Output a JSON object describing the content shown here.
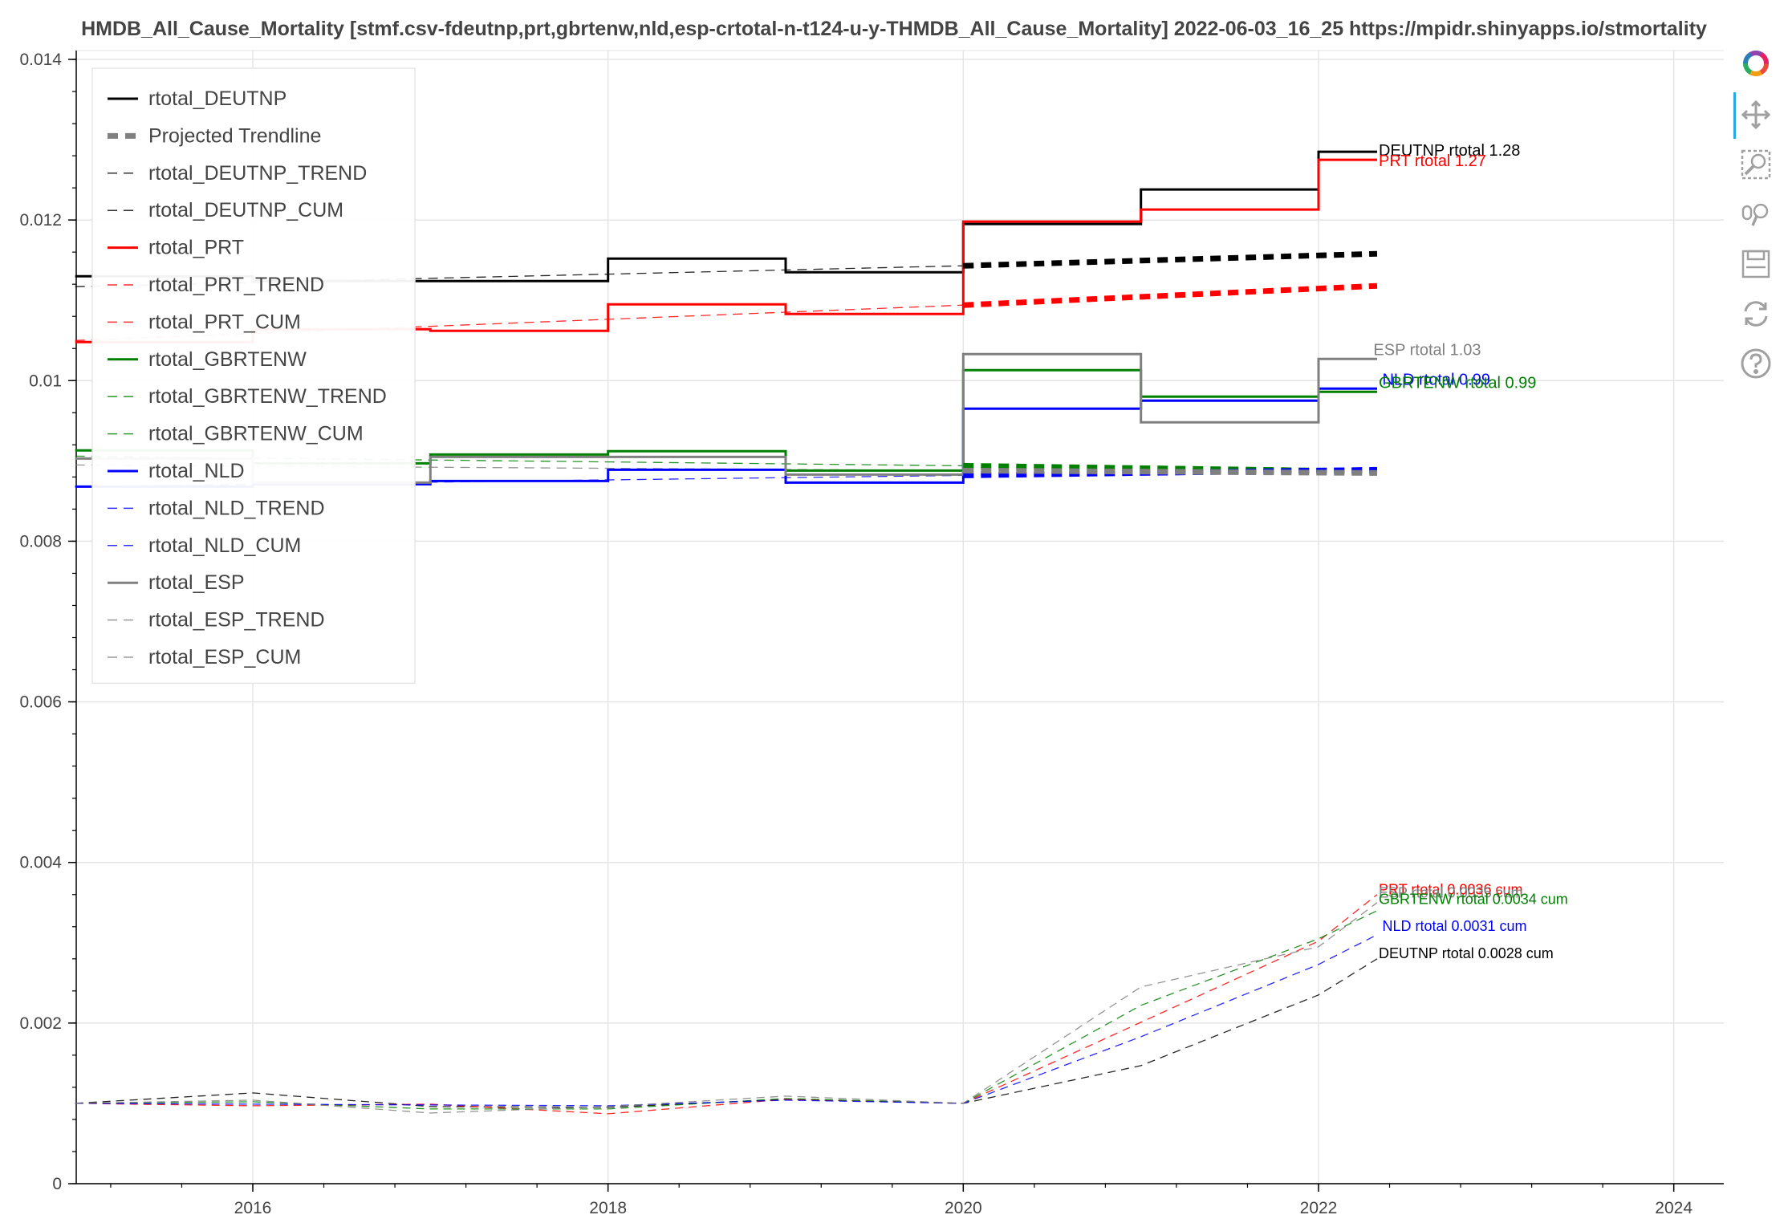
{
  "title": "HMDB_All_Cause_Mortality [stmf.csv-fdeutnp,prt,gbrtenw,nld,esp-crtotal-n-t124-u-y-THMDB_All_Cause_Mortality] 2022-06-03_16_25  https://mpidr.shinyapps.io/stmortality",
  "toolbar": {
    "tools": [
      "bokeh-logo-icon",
      "pan-icon",
      "box-zoom-icon",
      "wheel-zoom-icon",
      "save-icon",
      "reset-icon",
      "help-icon"
    ],
    "active": "pan-icon",
    "colors": {
      "logo": [
        "#e84c3d",
        "#f39c12",
        "#27ae60",
        "#2980b9",
        "#8e44ad",
        "#e91e63"
      ],
      "tool": "#a0a0a0",
      "active_bar": "#26aae1"
    }
  },
  "chart_data": {
    "type": "line",
    "title": "HMDB_All_Cause_Mortality [stmf.csv-fdeutnp,prt,gbrtenw,nld,esp-crtotal-n-t124-u-y-THMDB_All_Cause_Mortality] 2022-06-03_16_25  https://mpidr.shinyapps.io/stmortality",
    "xlim": [
      2015.0,
      2024.7
    ],
    "ylim": [
      0,
      0.0143
    ],
    "x_ticks": [
      2016,
      2018,
      2020,
      2022,
      2024
    ],
    "x_tick_labels": [
      "2016",
      "2018",
      "2020",
      "2022",
      "2024"
    ],
    "y_ticks": [
      0,
      0.002,
      0.004,
      0.006,
      0.008,
      0.01,
      0.012,
      0.014
    ],
    "y_tick_labels": [
      "0",
      "0.002",
      "0.004",
      "0.006",
      "0.008",
      "0.01",
      "0.012",
      "0.014"
    ],
    "grid": true,
    "legend_position": "top-left",
    "legend": [
      {
        "label": "rtotal_DEUTNP",
        "color": "#000000",
        "style": "solid"
      },
      {
        "label": "Projected Trendline",
        "color": "#808080",
        "style": "thick-dash"
      },
      {
        "label": "rtotal_DEUTNP_TREND",
        "color": "#000000",
        "style": "dashed"
      },
      {
        "label": "rtotal_DEUTNP_CUM",
        "color": "#000000",
        "style": "dashed"
      },
      {
        "label": "rtotal_PRT",
        "color": "#ff0000",
        "style": "solid"
      },
      {
        "label": "rtotal_PRT_TREND",
        "color": "#ff0000",
        "style": "dashed"
      },
      {
        "label": "rtotal_PRT_CUM",
        "color": "#ff0000",
        "style": "dashed"
      },
      {
        "label": "rtotal_GBRTENW",
        "color": "#008000",
        "style": "solid"
      },
      {
        "label": "rtotal_GBRTENW_TREND",
        "color": "#008000",
        "style": "dashed"
      },
      {
        "label": "rtotal_GBRTENW_CUM",
        "color": "#008000",
        "style": "dashed"
      },
      {
        "label": "rtotal_NLD",
        "color": "#0000ff",
        "style": "solid"
      },
      {
        "label": "rtotal_NLD_TREND",
        "color": "#0000ff",
        "style": "dashed"
      },
      {
        "label": "rtotal_NLD_CUM",
        "color": "#0000ff",
        "style": "dashed"
      },
      {
        "label": "rtotal_ESP",
        "color": "#808080",
        "style": "solid"
      },
      {
        "label": "rtotal_ESP_TREND",
        "color": "#808080",
        "style": "dashed"
      },
      {
        "label": "rtotal_ESP_CUM",
        "color": "#808080",
        "style": "dashed"
      }
    ],
    "series": [
      {
        "name": "rtotal_DEUTNP",
        "color": "#000000",
        "kind": "step",
        "x": [
          2015.0,
          2016.0,
          2017.0,
          2018.0,
          2019.0,
          2020.0,
          2021.0,
          2022.0,
          2022.33
        ],
        "y": [
          0.0113,
          0.01124,
          0.01124,
          0.01152,
          0.01135,
          0.01195,
          0.01238,
          0.01285,
          0.01285
        ]
      },
      {
        "name": "rtotal_DEUTNP_TREND",
        "color": "#000000",
        "kind": "trend",
        "x": [
          2015.0,
          2020.0
        ],
        "y": [
          0.01117,
          0.01143
        ]
      },
      {
        "name": "rtotal_DEUTNP_PROJ",
        "color": "#000000",
        "kind": "proj",
        "x": [
          2020.0,
          2022.33
        ],
        "y": [
          0.01143,
          0.01158
        ]
      },
      {
        "name": "rtotal_DEUTNP_CUM",
        "color": "#000000",
        "kind": "cum",
        "x": [
          2015.0,
          2016.0,
          2017.0,
          2018.0,
          2019.0,
          2020.0,
          2021.0,
          2022.0,
          2022.33
        ],
        "y": [
          0.001,
          0.00113,
          0.00096,
          0.00095,
          0.00105,
          0.001,
          0.00147,
          0.00235,
          0.0028
        ]
      },
      {
        "name": "rtotal_PRT",
        "color": "#ff0000",
        "kind": "step",
        "x": [
          2015.0,
          2016.0,
          2017.0,
          2018.0,
          2019.0,
          2020.0,
          2021.0,
          2022.0,
          2022.33
        ],
        "y": [
          0.01048,
          0.01064,
          0.01062,
          0.01095,
          0.01083,
          0.01198,
          0.01213,
          0.01275,
          0.01275
        ]
      },
      {
        "name": "rtotal_PRT_TREND",
        "color": "#ff0000",
        "kind": "trend",
        "x": [
          2015.0,
          2020.0
        ],
        "y": [
          0.0105,
          0.01094
        ]
      },
      {
        "name": "rtotal_PRT_PROJ",
        "color": "#ff0000",
        "kind": "proj",
        "x": [
          2020.0,
          2022.33
        ],
        "y": [
          0.01094,
          0.01118
        ]
      },
      {
        "name": "rtotal_PRT_CUM",
        "color": "#ff0000",
        "kind": "cum",
        "x": [
          2015.0,
          2016.0,
          2017.0,
          2018.0,
          2019.0,
          2020.0,
          2021.0,
          2022.0,
          2022.33
        ],
        "y": [
          0.001,
          0.00097,
          0.00099,
          0.00087,
          0.00105,
          0.001,
          0.00201,
          0.00302,
          0.0036
        ]
      },
      {
        "name": "rtotal_GBRTENW",
        "color": "#008000",
        "kind": "step",
        "x": [
          2015.0,
          2016.0,
          2017.0,
          2018.0,
          2019.0,
          2020.0,
          2021.0,
          2022.0,
          2022.33
        ],
        "y": [
          0.00913,
          0.00897,
          0.00908,
          0.00912,
          0.00888,
          0.01013,
          0.0098,
          0.00986,
          0.00986
        ]
      },
      {
        "name": "rtotal_GBRTENW_TREND",
        "color": "#008000",
        "kind": "trend",
        "x": [
          2015.0,
          2020.0
        ],
        "y": [
          0.00906,
          0.00894
        ]
      },
      {
        "name": "rtotal_GBRTENW_PROJ",
        "color": "#008000",
        "kind": "proj",
        "x": [
          2020.0,
          2022.33
        ],
        "y": [
          0.00894,
          0.00887
        ]
      },
      {
        "name": "rtotal_GBRTENW_CUM",
        "color": "#008000",
        "kind": "cum",
        "x": [
          2015.0,
          2016.0,
          2017.0,
          2018.0,
          2019.0,
          2020.0,
          2021.0,
          2022.0,
          2022.33
        ],
        "y": [
          0.001,
          0.00102,
          0.00093,
          0.00093,
          0.00106,
          0.001,
          0.00222,
          0.00305,
          0.0034
        ]
      },
      {
        "name": "rtotal_NLD",
        "color": "#0000ff",
        "kind": "step",
        "x": [
          2015.0,
          2016.0,
          2017.0,
          2018.0,
          2019.0,
          2020.0,
          2021.0,
          2022.0,
          2022.33
        ],
        "y": [
          0.00868,
          0.00871,
          0.00875,
          0.00889,
          0.00873,
          0.00965,
          0.00975,
          0.0099,
          0.0099
        ]
      },
      {
        "name": "rtotal_NLD_TREND",
        "color": "#0000ff",
        "kind": "trend",
        "x": [
          2015.0,
          2020.0
        ],
        "y": [
          0.00868,
          0.00882
        ]
      },
      {
        "name": "rtotal_NLD_PROJ",
        "color": "#0000ff",
        "kind": "proj",
        "x": [
          2020.0,
          2022.33
        ],
        "y": [
          0.00882,
          0.00889
        ]
      },
      {
        "name": "rtotal_NLD_CUM",
        "color": "#0000ff",
        "kind": "cum",
        "x": [
          2015.0,
          2016.0,
          2017.0,
          2018.0,
          2019.0,
          2020.0,
          2021.0,
          2022.0,
          2022.33
        ],
        "y": [
          0.001,
          0.00099,
          0.00098,
          0.00097,
          0.00104,
          0.001,
          0.00183,
          0.00273,
          0.0031
        ]
      },
      {
        "name": "rtotal_ESP",
        "color": "#808080",
        "kind": "step",
        "x": [
          2015.0,
          2016.0,
          2017.0,
          2018.0,
          2019.0,
          2020.0,
          2021.0,
          2022.0,
          2022.33
        ],
        "y": [
          0.00903,
          0.00873,
          0.00905,
          0.00905,
          0.00883,
          0.01033,
          0.00948,
          0.01027,
          0.01027
        ]
      },
      {
        "name": "rtotal_ESP_TREND",
        "color": "#808080",
        "kind": "trend",
        "x": [
          2015.0,
          2020.0
        ],
        "y": [
          0.00895,
          0.00888
        ]
      },
      {
        "name": "rtotal_ESP_PROJ",
        "color": "#808080",
        "kind": "proj",
        "x": [
          2020.0,
          2022.33
        ],
        "y": [
          0.00888,
          0.00885
        ]
      },
      {
        "name": "rtotal_ESP_CUM",
        "color": "#808080",
        "kind": "cum",
        "x": [
          2015.0,
          2016.0,
          2017.0,
          2018.0,
          2019.0,
          2020.0,
          2021.0,
          2022.0,
          2022.33
        ],
        "y": [
          0.001,
          0.00104,
          0.00088,
          0.00096,
          0.00109,
          0.001,
          0.00245,
          0.00295,
          0.0035
        ]
      }
    ],
    "annotations": [
      {
        "text": "DEUTNP rtotal 1.28",
        "x": 2022.33,
        "y": 0.01285,
        "color": "#000000",
        "size": "normal"
      },
      {
        "text": "PRT rtotal 1.27",
        "x": 2022.33,
        "y": 0.01272,
        "color": "#ff0000",
        "size": "normal"
      },
      {
        "text": "ESP rtotal 1.03",
        "x": 2022.3,
        "y": 0.01037,
        "color": "#808080",
        "size": "normal"
      },
      {
        "text": "NLD rtotal 0.99",
        "x": 2022.35,
        "y": 0.01,
        "color": "#0000ff",
        "size": "normal"
      },
      {
        "text": "GBRTENW rtotal 0.99",
        "x": 2022.33,
        "y": 0.00996,
        "color": "#008000",
        "size": "normal"
      },
      {
        "text": "PRT rtotal 0.0036 cum",
        "x": 2022.33,
        "y": 0.00365,
        "color": "#ff0000",
        "size": "small"
      },
      {
        "text": "ESP rtotal 0.0035 cum",
        "x": 2022.33,
        "y": 0.00361,
        "color": "#808080",
        "size": "small"
      },
      {
        "text": "GBRTENW rtotal 0.0034 cum",
        "x": 2022.33,
        "y": 0.00353,
        "color": "#008000",
        "size": "small"
      },
      {
        "text": "NLD rtotal 0.0031 cum",
        "x": 2022.35,
        "y": 0.0032,
        "color": "#0000ff",
        "size": "small"
      },
      {
        "text": "DEUTNP rtotal 0.0028 cum",
        "x": 2022.33,
        "y": 0.00286,
        "color": "#000000",
        "size": "small"
      }
    ]
  }
}
